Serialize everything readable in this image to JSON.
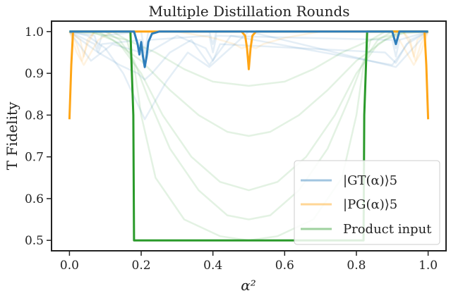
{
  "chart_data": {
    "type": "line",
    "title": "Multiple Distillation Rounds",
    "xlabel": "α²",
    "ylabel": "T Fidelity",
    "xlim": [
      -0.05,
      1.05
    ],
    "ylim": [
      0.475,
      1.025
    ],
    "xticks": [
      0.0,
      0.2,
      0.4,
      0.6,
      0.8,
      1.0
    ],
    "xtick_labels": [
      "0.0",
      "0.2",
      "0.4",
      "0.6",
      "0.8",
      "1.0"
    ],
    "yticks": [
      0.5,
      0.6,
      0.7,
      0.8,
      0.9,
      1.0
    ],
    "ytick_labels": [
      "0.5",
      "0.6",
      "0.7",
      "0.8",
      "0.9",
      "1.0"
    ],
    "legend_position": "bottom-right",
    "series": [
      {
        "name": "|GT(α)⟩5",
        "color": "#2e7ebb",
        "final": {
          "x": [
            0.0,
            0.18,
            0.19,
            0.195,
            0.2,
            0.205,
            0.21,
            0.215,
            0.22,
            0.23,
            0.25,
            0.28,
            0.3,
            0.9,
            0.905,
            0.91,
            0.915,
            0.92,
            0.93,
            1.0
          ],
          "y": [
            1.0,
            1.0,
            0.97,
            0.945,
            0.975,
            0.94,
            0.915,
            0.94,
            0.975,
            0.995,
            1.0,
            1.0,
            1.0,
            1.0,
            0.985,
            0.97,
            0.985,
            1.0,
            1.0,
            1.0
          ]
        },
        "rounds": [
          {
            "x": [
              0.0,
              0.05,
              0.1,
              0.15,
              0.21,
              0.27,
              0.33,
              0.39,
              0.5,
              0.91,
              1.0
            ],
            "y": [
              1.0,
              0.99,
              0.96,
              0.9,
              0.79,
              0.88,
              0.95,
              0.915,
              1.0,
              0.915,
              1.0
            ]
          },
          {
            "x": [
              0.0,
              0.08,
              0.14,
              0.19,
              0.21,
              0.23,
              0.28,
              0.34,
              0.39,
              0.45,
              0.9,
              0.95,
              1.0
            ],
            "y": [
              1.0,
              0.95,
              0.92,
              0.9,
              0.885,
              0.9,
              0.95,
              0.98,
              0.92,
              0.99,
              0.92,
              0.98,
              1.0
            ]
          },
          {
            "x": [
              0.0,
              0.06,
              0.12,
              0.2,
              0.21,
              0.22,
              0.3,
              0.38,
              0.4,
              0.42,
              0.88,
              0.91,
              0.94,
              1.0
            ],
            "y": [
              1.0,
              0.93,
              0.97,
              0.95,
              0.925,
              0.95,
              0.99,
              0.96,
              0.93,
              0.97,
              0.95,
              0.925,
              0.97,
              1.0
            ]
          },
          {
            "x": [
              0.0,
              0.07,
              0.08,
              0.09,
              0.2,
              0.21,
              0.22,
              0.39,
              0.4,
              0.41,
              0.9,
              0.91,
              0.92,
              1.0
            ],
            "y": [
              1.0,
              0.97,
              0.95,
              0.97,
              0.98,
              0.93,
              0.98,
              0.99,
              0.95,
              0.99,
              0.98,
              0.94,
              0.98,
              1.0
            ]
          },
          {
            "x": [
              0.0,
              0.07,
              0.08,
              0.09,
              0.2,
              0.21,
              0.22,
              0.39,
              0.4,
              0.41,
              0.9,
              0.91,
              0.92,
              1.0
            ],
            "y": [
              1.0,
              0.99,
              0.96,
              0.99,
              1.0,
              0.95,
              1.0,
              1.0,
              0.97,
              1.0,
              1.0,
              0.96,
              1.0,
              1.0
            ]
          }
        ]
      },
      {
        "name": "|PG(α)⟩5",
        "color": "#ffa516",
        "final": {
          "x": [
            0.0,
            0.005,
            0.01,
            0.02,
            0.48,
            0.49,
            0.495,
            0.5,
            0.505,
            0.51,
            0.52,
            0.98,
            0.99,
            0.995,
            1.0
          ],
          "y": [
            0.79,
            0.92,
            1.0,
            1.0,
            1.0,
            0.99,
            0.96,
            0.91,
            0.96,
            0.99,
            1.0,
            1.0,
            1.0,
            0.92,
            0.79
          ]
        },
        "rounds": [
          {
            "x": [
              0.0,
              0.02,
              0.04,
              0.06,
              0.08,
              0.12,
              0.14,
              0.88,
              0.9,
              0.92,
              0.94,
              0.96,
              0.98,
              1.0
            ],
            "y": [
              1.0,
              0.95,
              0.92,
              0.95,
              0.98,
              1.0,
              1.0,
              1.0,
              1.0,
              0.98,
              0.95,
              0.92,
              0.95,
              1.0
            ]
          },
          {
            "x": [
              0.0,
              0.02,
              0.035,
              0.05,
              0.07,
              0.1,
              0.9,
              0.93,
              0.95,
              0.965,
              0.98,
              1.0
            ],
            "y": [
              1.0,
              0.97,
              0.93,
              0.97,
              1.0,
              1.0,
              1.0,
              1.0,
              0.97,
              0.93,
              0.97,
              1.0
            ]
          },
          {
            "x": [
              0.0,
              0.03,
              0.04,
              0.05,
              0.07,
              0.93,
              0.95,
              0.96,
              0.97,
              1.0
            ],
            "y": [
              1.0,
              0.98,
              0.94,
              0.98,
              1.0,
              1.0,
              0.98,
              0.94,
              0.98,
              1.0
            ]
          },
          {
            "x": [
              0.0,
              0.3,
              0.4,
              0.46,
              0.48,
              0.5,
              0.52,
              0.54,
              0.6,
              0.7,
              1.0
            ],
            "y": [
              1.0,
              1.0,
              0.985,
              0.97,
              0.96,
              0.965,
              0.96,
              0.97,
              0.985,
              1.0,
              1.0
            ]
          }
        ]
      },
      {
        "name": "Product input",
        "color": "#2a9a2a",
        "final": {
          "x": [
            0.0,
            0.17,
            0.178,
            0.18,
            0.3,
            0.5,
            0.7,
            0.82,
            0.822,
            0.83,
            1.0
          ],
          "y": [
            1.0,
            1.0,
            0.8,
            0.5,
            0.5,
            0.5,
            0.5,
            0.5,
            0.8,
            1.0,
            1.0
          ]
        },
        "rounds": [
          {
            "x": [
              0.0,
              0.12,
              0.16,
              0.18,
              0.2,
              0.24,
              0.32,
              0.42,
              0.5,
              0.58,
              0.68,
              0.76,
              0.8,
              0.82,
              0.84,
              0.88,
              1.0
            ],
            "y": [
              1.0,
              1.0,
              0.98,
              0.92,
              0.8,
              0.65,
              0.55,
              0.51,
              0.5,
              0.51,
              0.55,
              0.65,
              0.8,
              0.92,
              0.98,
              1.0,
              1.0
            ]
          },
          {
            "x": [
              0.0,
              0.1,
              0.14,
              0.18,
              0.22,
              0.28,
              0.36,
              0.44,
              0.5,
              0.56,
              0.64,
              0.72,
              0.78,
              0.82,
              0.86,
              0.9,
              1.0
            ],
            "y": [
              1.0,
              1.0,
              0.98,
              0.93,
              0.84,
              0.72,
              0.62,
              0.56,
              0.55,
              0.56,
              0.62,
              0.72,
              0.84,
              0.93,
              0.98,
              1.0,
              1.0
            ]
          },
          {
            "x": [
              0.0,
              0.08,
              0.14,
              0.2,
              0.26,
              0.34,
              0.42,
              0.5,
              0.58,
              0.66,
              0.74,
              0.8,
              0.86,
              0.92,
              1.0
            ],
            "y": [
              1.0,
              1.0,
              0.97,
              0.9,
              0.8,
              0.7,
              0.64,
              0.62,
              0.64,
              0.7,
              0.8,
              0.9,
              0.97,
              1.0,
              1.0
            ]
          },
          {
            "x": [
              0.0,
              0.06,
              0.12,
              0.2,
              0.28,
              0.36,
              0.44,
              0.5,
              0.56,
              0.64,
              0.72,
              0.8,
              0.88,
              0.94,
              1.0
            ],
            "y": [
              1.0,
              1.0,
              0.98,
              0.93,
              0.86,
              0.8,
              0.76,
              0.75,
              0.76,
              0.8,
              0.86,
              0.93,
              0.98,
              1.0,
              1.0
            ]
          },
          {
            "x": [
              0.0,
              0.08,
              0.16,
              0.24,
              0.32,
              0.4,
              0.5,
              0.6,
              0.68,
              0.76,
              0.84,
              0.92,
              1.0
            ],
            "y": [
              1.0,
              0.995,
              0.98,
              0.95,
              0.91,
              0.88,
              0.87,
              0.88,
              0.91,
              0.95,
              0.98,
              0.995,
              1.0
            ]
          }
        ]
      }
    ]
  }
}
